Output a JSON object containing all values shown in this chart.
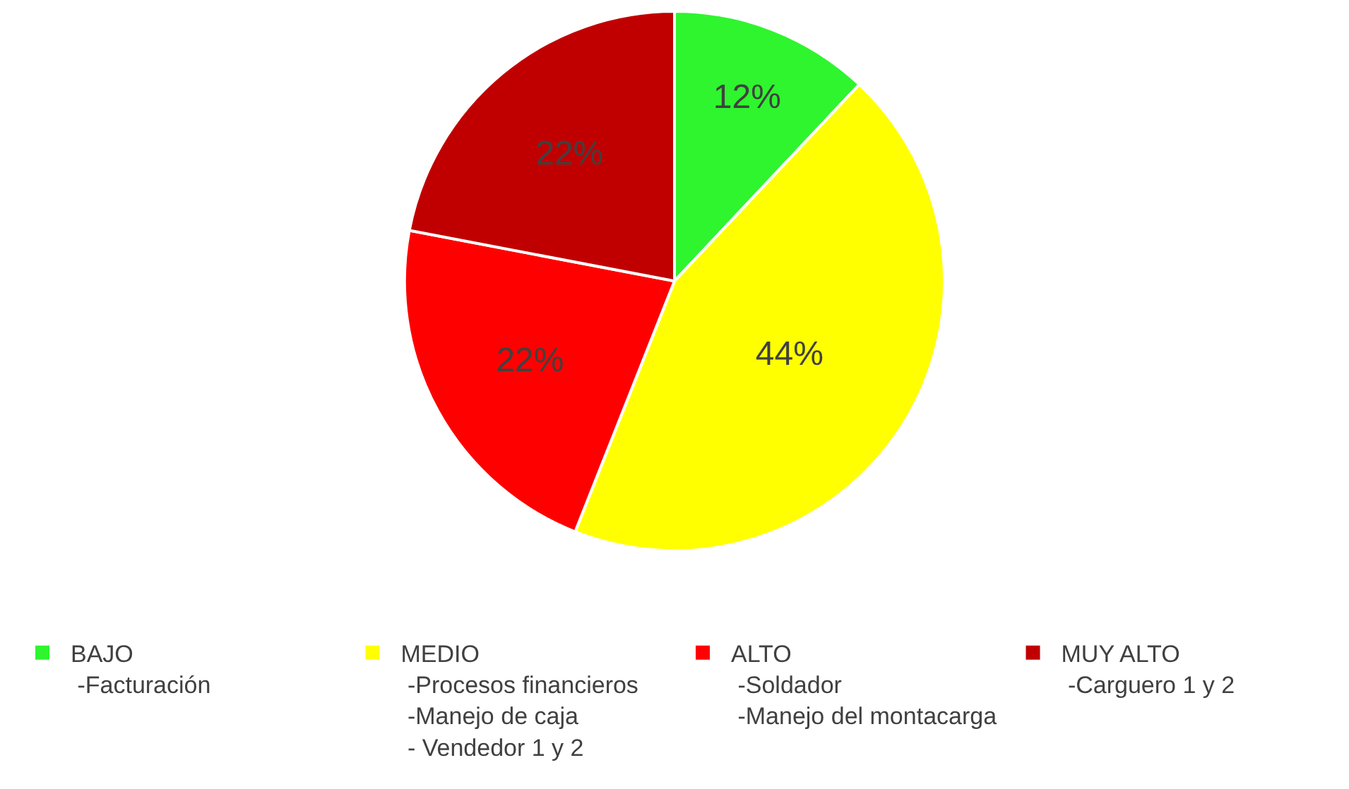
{
  "chart_data": {
    "type": "pie",
    "categories": [
      "BAJO\n -Facturación",
      "MEDIO\n -Procesos financieros\n -Manejo de caja\n - Vendedor 1 y 2",
      "ALTO\n -Soldador\n -Manejo del montacarga",
      "MUY ALTO\n -Carguero 1 y 2"
    ],
    "values": [
      12,
      44,
      22,
      22
    ],
    "value_labels": [
      "12%",
      "44%",
      "22%",
      "22%"
    ],
    "colors": [
      "#2ef52e",
      "#ffff00",
      "#ff0000",
      "#c00000"
    ],
    "legend": "bottom"
  }
}
